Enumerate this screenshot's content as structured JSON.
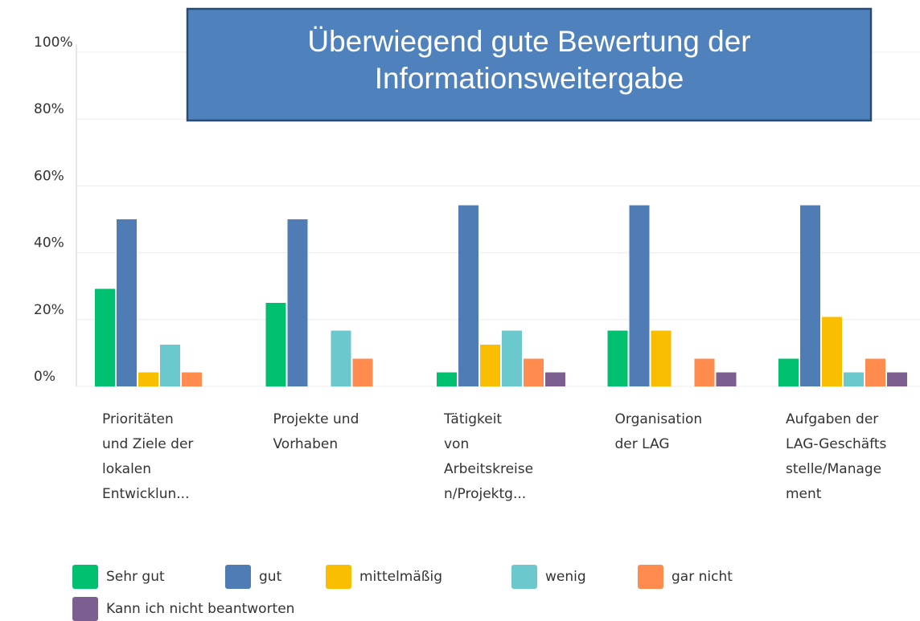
{
  "chart_data": {
    "type": "bar",
    "title": "Überwiegend gute Bewertung der\nInformationsweitergabe",
    "categories": [
      "Prioritäten\nund Ziele der\nlokalen\nEntwicklun...",
      "Projekte und\nVorhaben",
      "Tätigkeit\nvon\nArbeitskreise\nn/Projektg...",
      "Organisation\nder LAG",
      "Aufgaben der\nLAG-Geschäfts\nstelle/Manage\nment"
    ],
    "series": [
      {
        "name": "Sehr gut",
        "color": "#00bf6f",
        "values": [
          29.2,
          25,
          4.2,
          16.7,
          8.3
        ]
      },
      {
        "name": "gut",
        "color": "#507cb6",
        "values": [
          50,
          50,
          54.2,
          54.2,
          54.2
        ]
      },
      {
        "name": "mittelmäßig",
        "color": "#f9be00",
        "values": [
          4.2,
          0,
          12.5,
          16.7,
          20.8
        ]
      },
      {
        "name": "wenig",
        "color": "#6bc8cd",
        "values": [
          12.5,
          16.7,
          16.7,
          0,
          4.2
        ]
      },
      {
        "name": "gar nicht",
        "color": "#ff8b4f",
        "values": [
          4.2,
          8.3,
          8.3,
          8.3,
          8.3
        ]
      },
      {
        "name": "Kann ich nicht beantworten",
        "color": "#7d5e90",
        "values": [
          0,
          0,
          4.2,
          4.2,
          4.2
        ]
      }
    ],
    "ylim": [
      0,
      100
    ],
    "yticks": [
      {
        "value": 0,
        "label": "0%"
      },
      {
        "value": 20,
        "label": "20%"
      },
      {
        "value": 40,
        "label": "40%"
      },
      {
        "value": 60,
        "label": "60%"
      },
      {
        "value": 80,
        "label": "80%"
      },
      {
        "value": 100,
        "label": "100%"
      }
    ],
    "grid": true
  }
}
